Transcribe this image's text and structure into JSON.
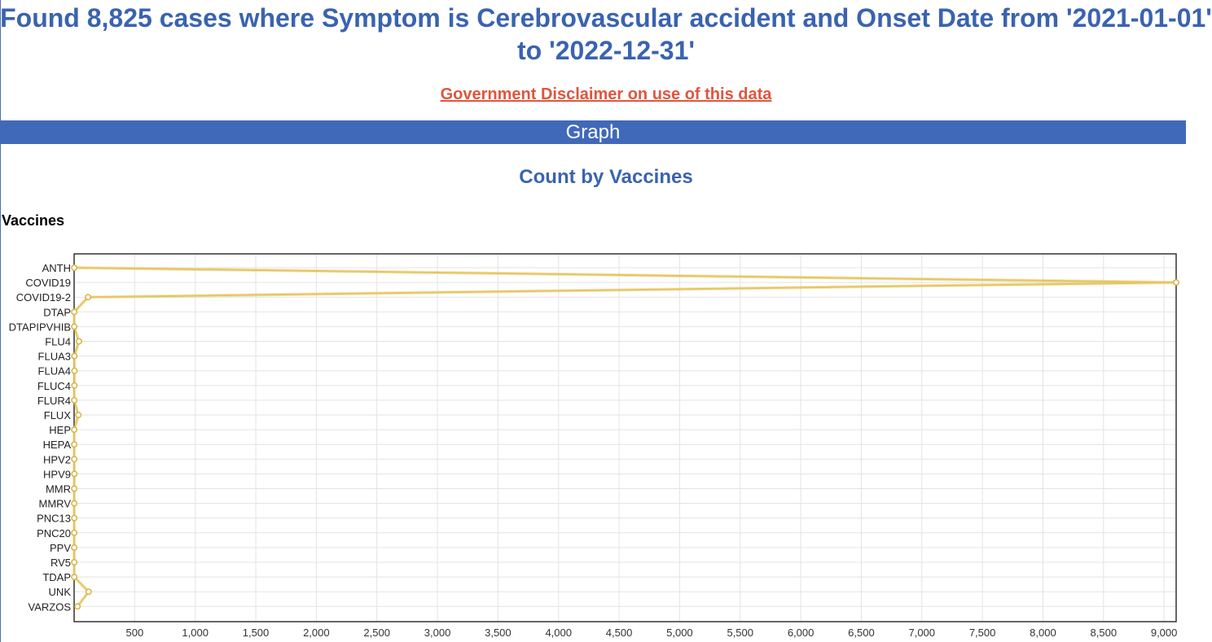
{
  "header": {
    "title": "Found 8,825 cases where Symptom is Cerebrovascular accident and Onset Date from '2021-01-01' to '2022-12-31'",
    "disclaimer_link": "Government Disclaimer on use of this data",
    "section_label": "Graph"
  },
  "colors": {
    "heading": "#3a63b0",
    "section_bar": "#4169b9",
    "disclaimer": "#e0553d",
    "series_line": "#e8c55a"
  },
  "chart_data": {
    "type": "line",
    "orientation": "horizontal",
    "title": "Count by Vaccines",
    "ylabel": "Vaccines",
    "xlabel": "",
    "categories": [
      "ANTH",
      "COVID19",
      "COVID19-2",
      "DTAP",
      "DTAPIPVHIB",
      "FLU4",
      "FLUA3",
      "FLUA4",
      "FLUC4",
      "FLUR4",
      "FLUX",
      "HEP",
      "HEPA",
      "HPV2",
      "HPV9",
      "MMR",
      "MMRV",
      "PNC13",
      "PNC20",
      "PPV",
      "RV5",
      "TDAP",
      "UNK",
      "VARZOS"
    ],
    "series": [
      {
        "values": [
          1,
          9100,
          115,
          1,
          1,
          40,
          2,
          3,
          2,
          1,
          35,
          1,
          1,
          1,
          2,
          1,
          1,
          1,
          1,
          1,
          1,
          1,
          120,
          28
        ]
      }
    ],
    "xlim": [
      0,
      9100
    ],
    "xticks": [
      500,
      1000,
      1500,
      2000,
      2500,
      3000,
      3500,
      4000,
      4500,
      5000,
      5500,
      6000,
      6500,
      7000,
      7500,
      8000,
      8500,
      9000
    ],
    "xtick_labels": [
      "500",
      "1,000",
      "1,500",
      "2,000",
      "2,500",
      "3,000",
      "3,500",
      "4,000",
      "4,500",
      "5,000",
      "5,500",
      "6,000",
      "6,500",
      "7,000",
      "7,500",
      "8,000",
      "8,500",
      "9,000"
    ],
    "grid": true,
    "legend": "none"
  }
}
